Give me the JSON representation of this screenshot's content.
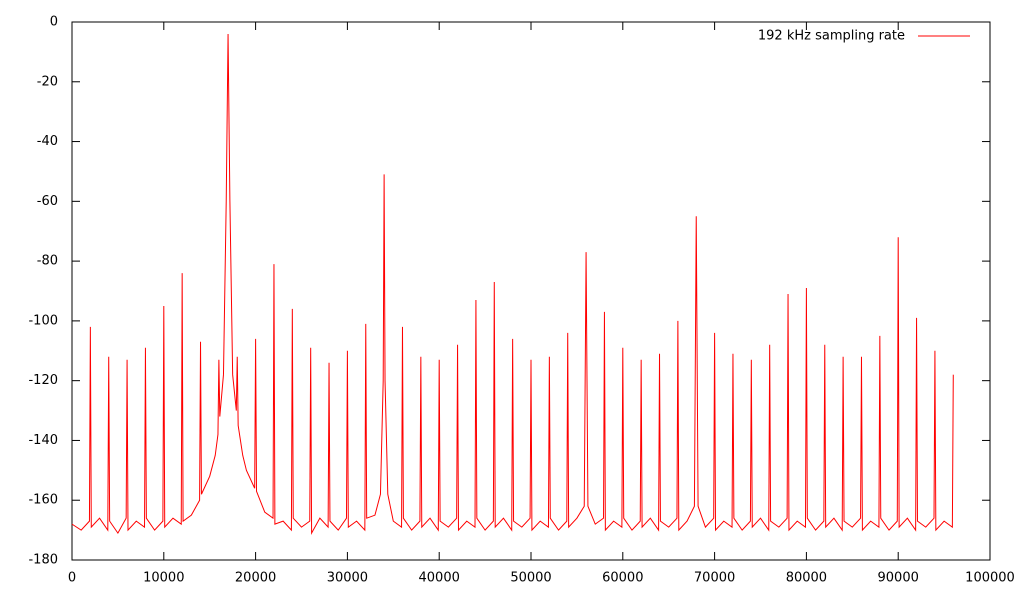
{
  "chart_data": {
    "type": "line",
    "x": [
      0,
      1000,
      1900,
      2000,
      2100,
      3000,
      3900,
      4000,
      4100,
      5000,
      5900,
      6000,
      6100,
      7000,
      7900,
      8000,
      8100,
      9000,
      9900,
      10000,
      10100,
      11000,
      11900,
      12000,
      12100,
      13000,
      13900,
      14000,
      14100,
      15000,
      15600,
      15900,
      16000,
      16100,
      16500,
      16800,
      17000,
      17200,
      17500,
      17900,
      18000,
      18100,
      18600,
      19000,
      19900,
      20000,
      20100,
      21000,
      21900,
      22000,
      22100,
      23000,
      23900,
      24000,
      24100,
      25000,
      25900,
      26000,
      26100,
      27000,
      27900,
      28000,
      28100,
      29000,
      29900,
      30000,
      30100,
      31000,
      31900,
      32000,
      32100,
      33000,
      33600,
      33900,
      34000,
      34100,
      34400,
      35000,
      35900,
      36000,
      36100,
      37000,
      37900,
      38000,
      38100,
      39000,
      39900,
      40000,
      40100,
      41000,
      41900,
      42000,
      42100,
      43000,
      43900,
      44000,
      44100,
      45000,
      45900,
      46000,
      46100,
      47000,
      47900,
      48000,
      48100,
      49000,
      49900,
      50000,
      50100,
      51000,
      51900,
      52000,
      52100,
      53000,
      53900,
      54000,
      54100,
      55000,
      55800,
      56000,
      56200,
      57000,
      57900,
      58000,
      58100,
      59000,
      59900,
      60000,
      60100,
      61000,
      61900,
      62000,
      62100,
      63000,
      63900,
      64000,
      64100,
      65000,
      65900,
      66000,
      66100,
      67000,
      67800,
      68000,
      68200,
      69000,
      69900,
      70000,
      70100,
      71000,
      71900,
      72000,
      72100,
      73000,
      73900,
      74000,
      74100,
      75000,
      75900,
      76000,
      76100,
      77000,
      77900,
      78000,
      78100,
      79000,
      79900,
      80000,
      80100,
      81000,
      81900,
      82000,
      82100,
      83000,
      83900,
      84000,
      84100,
      85000,
      85900,
      86000,
      86100,
      87000,
      87900,
      88000,
      88100,
      89000,
      89900,
      90000,
      90100,
      91000,
      91900,
      92000,
      92100,
      93000,
      93900,
      94000,
      94100,
      95000,
      95900,
      96000
    ],
    "series": [
      {
        "name": "192 kHz sampling rate",
        "color": "#ff0000",
        "values": [
          -168,
          -170,
          -167,
          -102,
          -169,
          -166,
          -170,
          -112,
          -167,
          -171,
          -166,
          -113,
          -170,
          -167,
          -169,
          -109,
          -166,
          -170,
          -167,
          -95,
          -169,
          -166,
          -168,
          -84,
          -167,
          -165,
          -160,
          -107,
          -158,
          -152,
          -145,
          -138,
          -113,
          -132,
          -118,
          -60,
          -4,
          -60,
          -118,
          -130,
          -112,
          -135,
          -145,
          -150,
          -156,
          -106,
          -157,
          -164,
          -166,
          -81,
          -168,
          -167,
          -170,
          -96,
          -166,
          -169,
          -167,
          -109,
          -171,
          -166,
          -169,
          -114,
          -167,
          -170,
          -166,
          -110,
          -169,
          -167,
          -170,
          -101,
          -166,
          -165,
          -158,
          -120,
          -51,
          -120,
          -158,
          -167,
          -169,
          -102,
          -166,
          -170,
          -167,
          -112,
          -169,
          -166,
          -170,
          -113,
          -167,
          -169,
          -166,
          -108,
          -170,
          -167,
          -169,
          -93,
          -166,
          -170,
          -167,
          -87,
          -169,
          -166,
          -170,
          -106,
          -167,
          -169,
          -166,
          -113,
          -170,
          -167,
          -169,
          -112,
          -166,
          -170,
          -167,
          -104,
          -169,
          -166,
          -162,
          -77,
          -162,
          -168,
          -166,
          -97,
          -170,
          -167,
          -169,
          -109,
          -166,
          -170,
          -167,
          -113,
          -169,
          -166,
          -170,
          -111,
          -167,
          -169,
          -166,
          -100,
          -170,
          -167,
          -162,
          -65,
          -162,
          -169,
          -166,
          -104,
          -170,
          -167,
          -169,
          -111,
          -166,
          -170,
          -167,
          -113,
          -169,
          -166,
          -170,
          -108,
          -167,
          -169,
          -166,
          -91,
          -170,
          -167,
          -169,
          -89,
          -166,
          -170,
          -167,
          -108,
          -169,
          -166,
          -170,
          -112,
          -167,
          -169,
          -166,
          -112,
          -170,
          -167,
          -169,
          -105,
          -166,
          -170,
          -167,
          -72,
          -169,
          -166,
          -170,
          -99,
          -167,
          -169,
          -166,
          -110,
          -170,
          -167,
          -169,
          -118
        ]
      }
    ],
    "xlim": [
      0,
      100000
    ],
    "xticks": [
      0,
      10000,
      20000,
      30000,
      40000,
      50000,
      60000,
      70000,
      80000,
      90000,
      100000
    ],
    "ylim": [
      -180,
      0
    ],
    "yticks": [
      -180,
      -160,
      -140,
      -120,
      -100,
      -80,
      -60,
      -40,
      -20,
      0
    ],
    "grid": false,
    "legend": "top-right"
  }
}
